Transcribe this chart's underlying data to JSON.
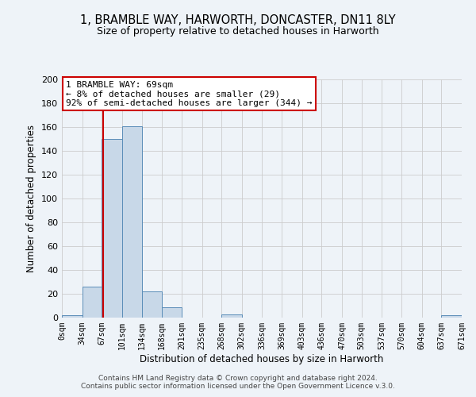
{
  "title": "1, BRAMBLE WAY, HARWORTH, DONCASTER, DN11 8LY",
  "subtitle": "Size of property relative to detached houses in Harworth",
  "xlabel": "Distribution of detached houses by size in Harworth",
  "ylabel": "Number of detached properties",
  "bar_color": "#c8d8e8",
  "bar_edge_color": "#5b8db8",
  "background_color": "#eef3f8",
  "grid_color": "#cccccc",
  "bin_edges": [
    0,
    34,
    67,
    101,
    134,
    168,
    201,
    235,
    268,
    302,
    336,
    369,
    403,
    436,
    470,
    503,
    537,
    570,
    604,
    637,
    671
  ],
  "bin_labels": [
    "0sqm",
    "34sqm",
    "67sqm",
    "101sqm",
    "134sqm",
    "168sqm",
    "201sqm",
    "235sqm",
    "268sqm",
    "302sqm",
    "336sqm",
    "369sqm",
    "403sqm",
    "436sqm",
    "470sqm",
    "503sqm",
    "537sqm",
    "570sqm",
    "604sqm",
    "637sqm",
    "671sqm"
  ],
  "counts": [
    2,
    26,
    150,
    161,
    22,
    9,
    0,
    0,
    3,
    0,
    0,
    0,
    0,
    0,
    0,
    0,
    0,
    0,
    0,
    2
  ],
  "property_value": 69,
  "vline_color": "#cc0000",
  "annotation_line1": "1 BRAMBLE WAY: 69sqm",
  "annotation_line2": "← 8% of detached houses are smaller (29)",
  "annotation_line3": "92% of semi-detached houses are larger (344) →",
  "annotation_box_color": "white",
  "annotation_box_edge_color": "#cc0000",
  "ylim": [
    0,
    200
  ],
  "yticks": [
    0,
    20,
    40,
    60,
    80,
    100,
    120,
    140,
    160,
    180,
    200
  ],
  "footer_line1": "Contains HM Land Registry data © Crown copyright and database right 2024.",
  "footer_line2": "Contains public sector information licensed under the Open Government Licence v.3.0."
}
